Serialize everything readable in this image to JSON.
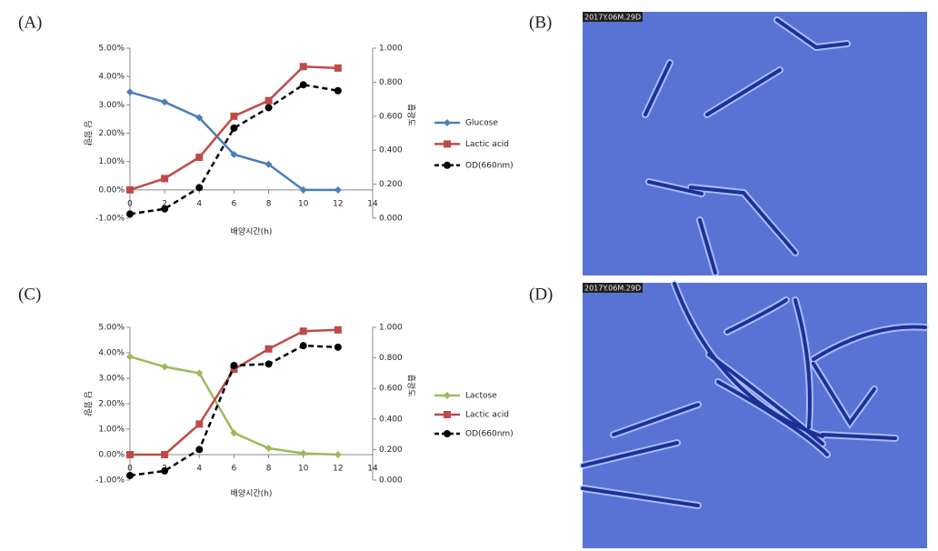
{
  "panels": [
    "(A)",
    "(B)",
    "(C)",
    "(D)"
  ],
  "images": [
    {
      "timestamp": "2017Y.06M.29D"
    },
    {
      "timestamp": "2017Y.06M.29D"
    }
  ],
  "chart_data": [
    {
      "type": "line",
      "xlabel": "배양시간(h)",
      "ylabel": "당 함량",
      "y2label": "흡광도",
      "x": [
        0,
        2,
        4,
        6,
        8,
        10,
        12
      ],
      "xlim": [
        0,
        14
      ],
      "xticks": [
        0,
        2,
        4,
        6,
        8,
        10,
        12,
        14
      ],
      "ylim": [
        -1,
        5
      ],
      "yticks": [
        {
          "value": -1,
          "label": "-1.00%"
        },
        {
          "value": 0,
          "label": "0.00%"
        },
        {
          "value": 1,
          "label": "1.00%"
        },
        {
          "value": 2,
          "label": "2.00%"
        },
        {
          "value": 3,
          "label": "3.00%"
        },
        {
          "value": 4,
          "label": "4.00%"
        },
        {
          "value": 5,
          "label": "5.00%"
        }
      ],
      "y2lim": [
        0,
        1
      ],
      "y2ticks": [
        {
          "value": 0,
          "label": "0.000"
        },
        {
          "value": 0.2,
          "label": "0.200"
        },
        {
          "value": 0.4,
          "label": "0.400"
        },
        {
          "value": 0.6,
          "label": "0.600"
        },
        {
          "value": 0.8,
          "label": "0.800"
        },
        {
          "value": 1,
          "label": "1.000"
        }
      ],
      "grid": false,
      "legend": "right",
      "series": [
        {
          "name": "Glucose",
          "color": "#4a7ebb",
          "marker": "diamond",
          "values": [
            3.45,
            3.1,
            2.55,
            1.25,
            0.9,
            0.0,
            0.0
          ]
        },
        {
          "name": "Lactic acid",
          "color": "#be4b48",
          "marker": "square",
          "values": [
            0.0,
            0.4,
            1.15,
            2.6,
            3.15,
            4.35,
            4.3
          ]
        },
        {
          "name": "OD(660nm)",
          "color": "#000000",
          "marker": "circle",
          "dashed": true,
          "axis": "y2",
          "values": [
            0.025,
            0.055,
            0.18,
            0.53,
            0.65,
            0.785,
            0.75
          ]
        }
      ]
    },
    {
      "type": "line",
      "xlabel": "배양시간(h)",
      "ylabel": "당 함량",
      "y2label": "흡광도",
      "x": [
        0,
        2,
        4,
        6,
        8,
        10,
        12
      ],
      "xlim": [
        0,
        14
      ],
      "xticks": [
        0,
        2,
        4,
        6,
        8,
        10,
        12,
        14
      ],
      "ylim": [
        -1,
        5
      ],
      "yticks": [
        {
          "value": -1,
          "label": "-1.00%"
        },
        {
          "value": 0,
          "label": "0.00%"
        },
        {
          "value": 1,
          "label": "1.00%"
        },
        {
          "value": 2,
          "label": "2.00%"
        },
        {
          "value": 3,
          "label": "3.00%"
        },
        {
          "value": 4,
          "label": "4.00%"
        },
        {
          "value": 5,
          "label": "5.00%"
        }
      ],
      "y2lim": [
        0,
        1
      ],
      "y2ticks": [
        {
          "value": 0,
          "label": "0.000"
        },
        {
          "value": 0.2,
          "label": "0.200"
        },
        {
          "value": 0.4,
          "label": "0.400"
        },
        {
          "value": 0.6,
          "label": "0.600"
        },
        {
          "value": 0.8,
          "label": "0.800"
        },
        {
          "value": 1,
          "label": "1.000"
        }
      ],
      "grid": false,
      "legend": "right",
      "series": [
        {
          "name": "Lactose",
          "color": "#9bbb59",
          "marker": "diamond",
          "values": [
            3.85,
            3.45,
            3.2,
            0.85,
            0.25,
            0.05,
            0.0
          ]
        },
        {
          "name": "Lactic acid",
          "color": "#be4b48",
          "marker": "square",
          "values": [
            0.0,
            0.0,
            1.2,
            3.35,
            4.15,
            4.85,
            4.9
          ]
        },
        {
          "name": "OD(660nm)",
          "color": "#000000",
          "marker": "circle",
          "dashed": true,
          "axis": "y2",
          "values": [
            0.03,
            0.06,
            0.2,
            0.75,
            0.76,
            0.88,
            0.87
          ]
        }
      ]
    }
  ]
}
